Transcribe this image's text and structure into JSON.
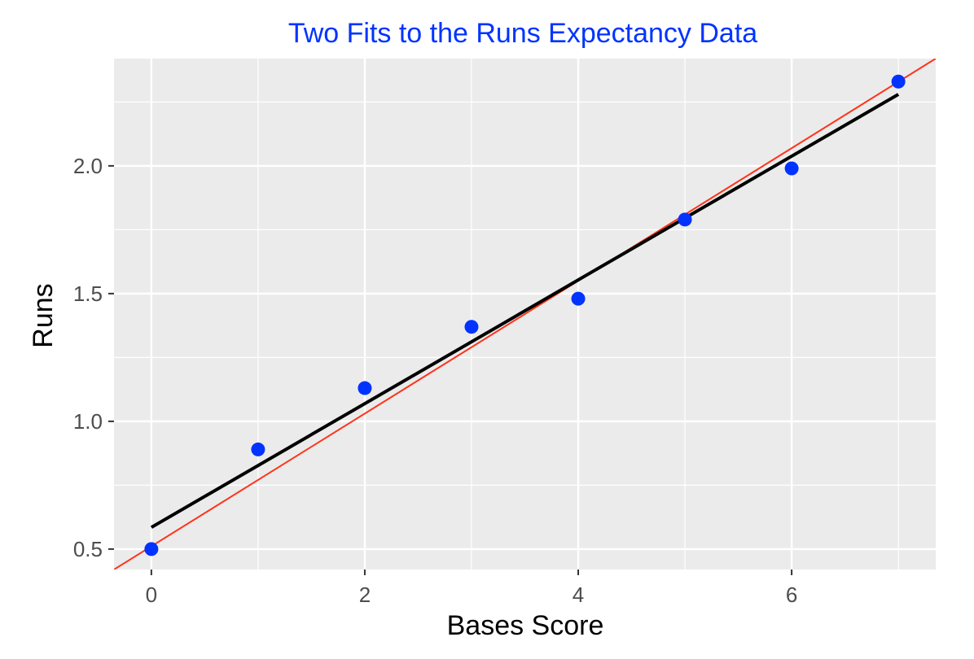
{
  "chart_data": {
    "type": "scatter",
    "title": "Two Fits to the Runs Expectancy Data",
    "xlabel": "Bases Score",
    "ylabel": "Runs",
    "xlim": [
      -0.35,
      7.35
    ],
    "ylim": [
      0.42,
      2.42
    ],
    "x_ticks": [
      0,
      2,
      4,
      6
    ],
    "x_tick_labels": [
      "0",
      "2",
      "4",
      "6"
    ],
    "y_ticks": [
      0.5,
      1.0,
      1.5,
      2.0
    ],
    "y_tick_labels": [
      "0.5",
      "1.0",
      "1.5",
      "2.0"
    ],
    "grid": true,
    "points": {
      "x": [
        0,
        1,
        2,
        3,
        4,
        5,
        6,
        7
      ],
      "y": [
        0.5,
        0.89,
        1.13,
        1.37,
        1.48,
        1.79,
        1.99,
        2.33
      ]
    },
    "fit_lines": [
      {
        "x": [
          0,
          7
        ],
        "y": [
          0.585,
          2.28
        ]
      },
      {
        "x": [
          -0.35,
          7.35
        ],
        "y": [
          0.42,
          2.42
        ]
      }
    ],
    "colors": {
      "title": "#0033ff",
      "points": "#0033ff",
      "black_fit": "#000000",
      "red_fit": "#ff3319",
      "panel": "#ebebeb",
      "grid": "#ffffff"
    }
  }
}
